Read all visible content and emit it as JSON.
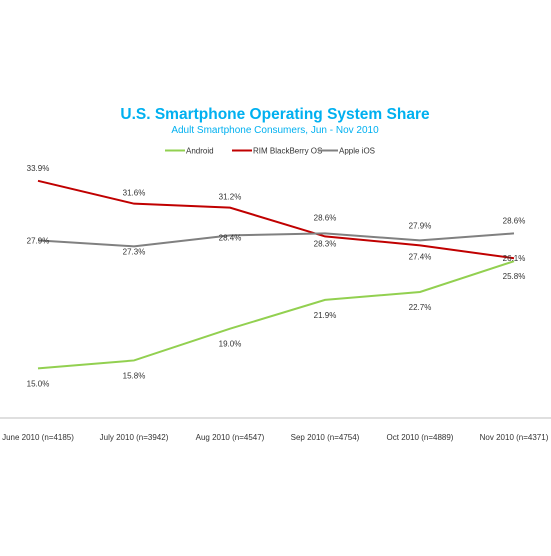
{
  "chart_data": {
    "type": "line",
    "title": "U.S. Smartphone Operating System Share",
    "subtitle": "Adult Smartphone Consumers, Jun - Nov 2010",
    "categories": [
      "June 2010 (n=4185)",
      "July 2010 (n=3942)",
      "Aug 2010 (n=4547)",
      "Sep 2010 (n=4754)",
      "Oct 2010 (n=4889)",
      "Nov 2010 (n=4371)"
    ],
    "series": [
      {
        "name": "Android",
        "color": "#92D050",
        "values": [
          15.0,
          15.8,
          19.0,
          21.9,
          22.7,
          25.8
        ],
        "labels": [
          "15.0%",
          "15.8%",
          "19.0%",
          "21.9%",
          "22.7%",
          "25.8%"
        ]
      },
      {
        "name": "RIM BlackBerry OS",
        "color": "#C00000",
        "values": [
          33.9,
          31.6,
          31.2,
          28.3,
          27.4,
          26.1
        ],
        "labels": [
          "33.9%",
          "31.6%",
          "31.2%",
          "28.3%",
          "27.4%",
          "26.1%"
        ]
      },
      {
        "name": "Apple iOS",
        "color": "#808080",
        "values": [
          27.9,
          27.3,
          28.4,
          28.6,
          27.9,
          28.6
        ],
        "labels": [
          "27.9%",
          "27.3%",
          "28.4%",
          "28.6%",
          "27.9%",
          "28.6%"
        ]
      }
    ],
    "xlabel": "",
    "ylabel": "",
    "ylim": [
      10,
      36
    ],
    "grid": false,
    "legend_position": "top",
    "colors": {
      "title": "#00B0F0",
      "subtitle": "#00B0F0",
      "axis": "#BFBFBF",
      "labels": "#333333"
    }
  }
}
